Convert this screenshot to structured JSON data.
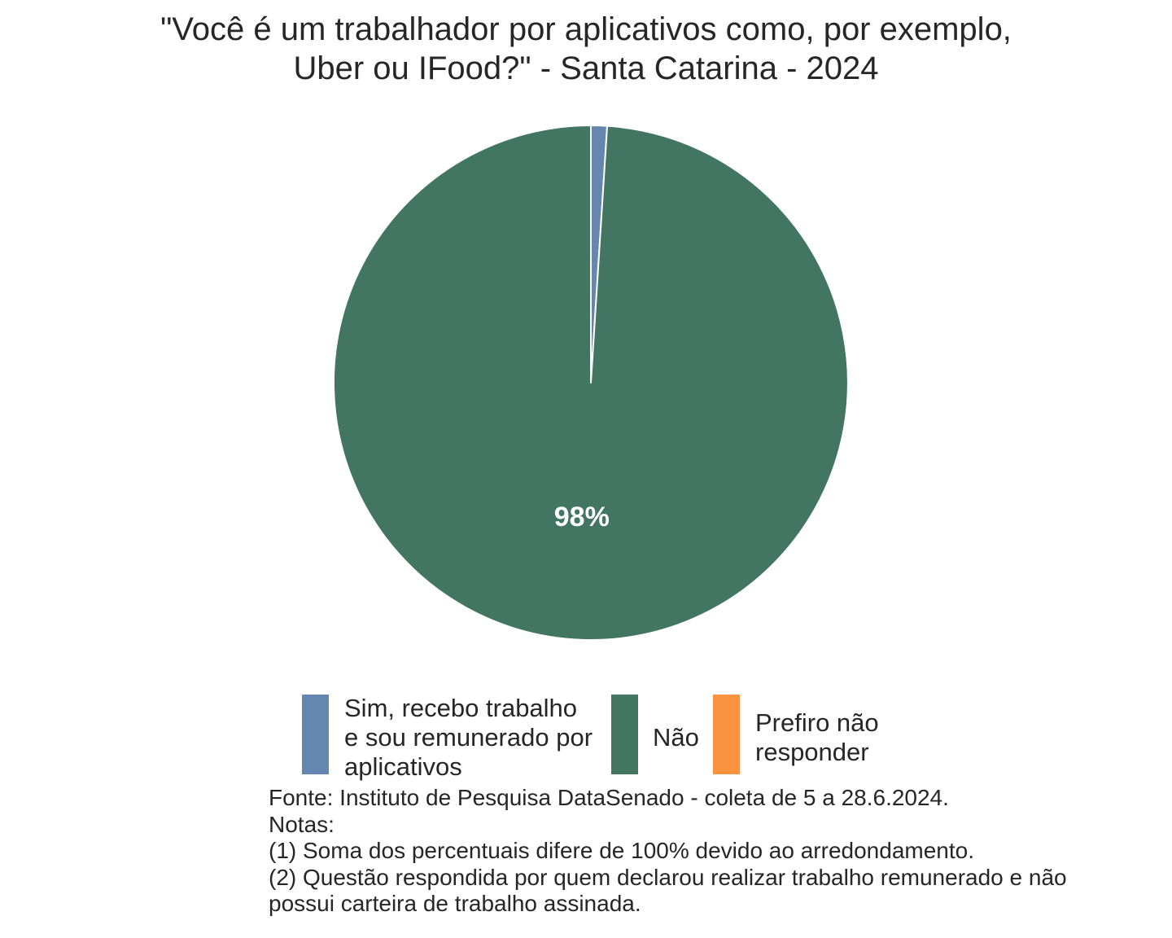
{
  "chart_data": {
    "type": "pie",
    "title_lines": [
      "\"Você é um trabalhador por aplicativos como, por exemplo,",
      "Uber ou IFood?\" - Santa Catarina - 2024"
    ],
    "slices": [
      {
        "label_lines": [
          "Sim, recebo trabalho",
          "e sou remunerado por",
          "aplicativos"
        ],
        "value": 1,
        "color": "#6586b0",
        "data_label": ""
      },
      {
        "label_lines": [
          "Não"
        ],
        "value": 98,
        "color": "#437563",
        "data_label": "98%"
      },
      {
        "label_lines": [
          "Prefiro não",
          "responder"
        ],
        "value": 0,
        "color": "#fb923f",
        "data_label": ""
      }
    ],
    "legend_position": "bottom"
  },
  "notes": {
    "lines": [
      "Fonte: Instituto de Pesquisa DataSenado - coleta de 5 a 28.6.2024.",
      "Notas:",
      "(1) Soma dos percentuais difere de 100% devido ao arredondamento.",
      "(2) Questão respondida por quem declarou realizar trabalho remunerado e não",
      "possui carteira de trabalho assinada."
    ]
  }
}
